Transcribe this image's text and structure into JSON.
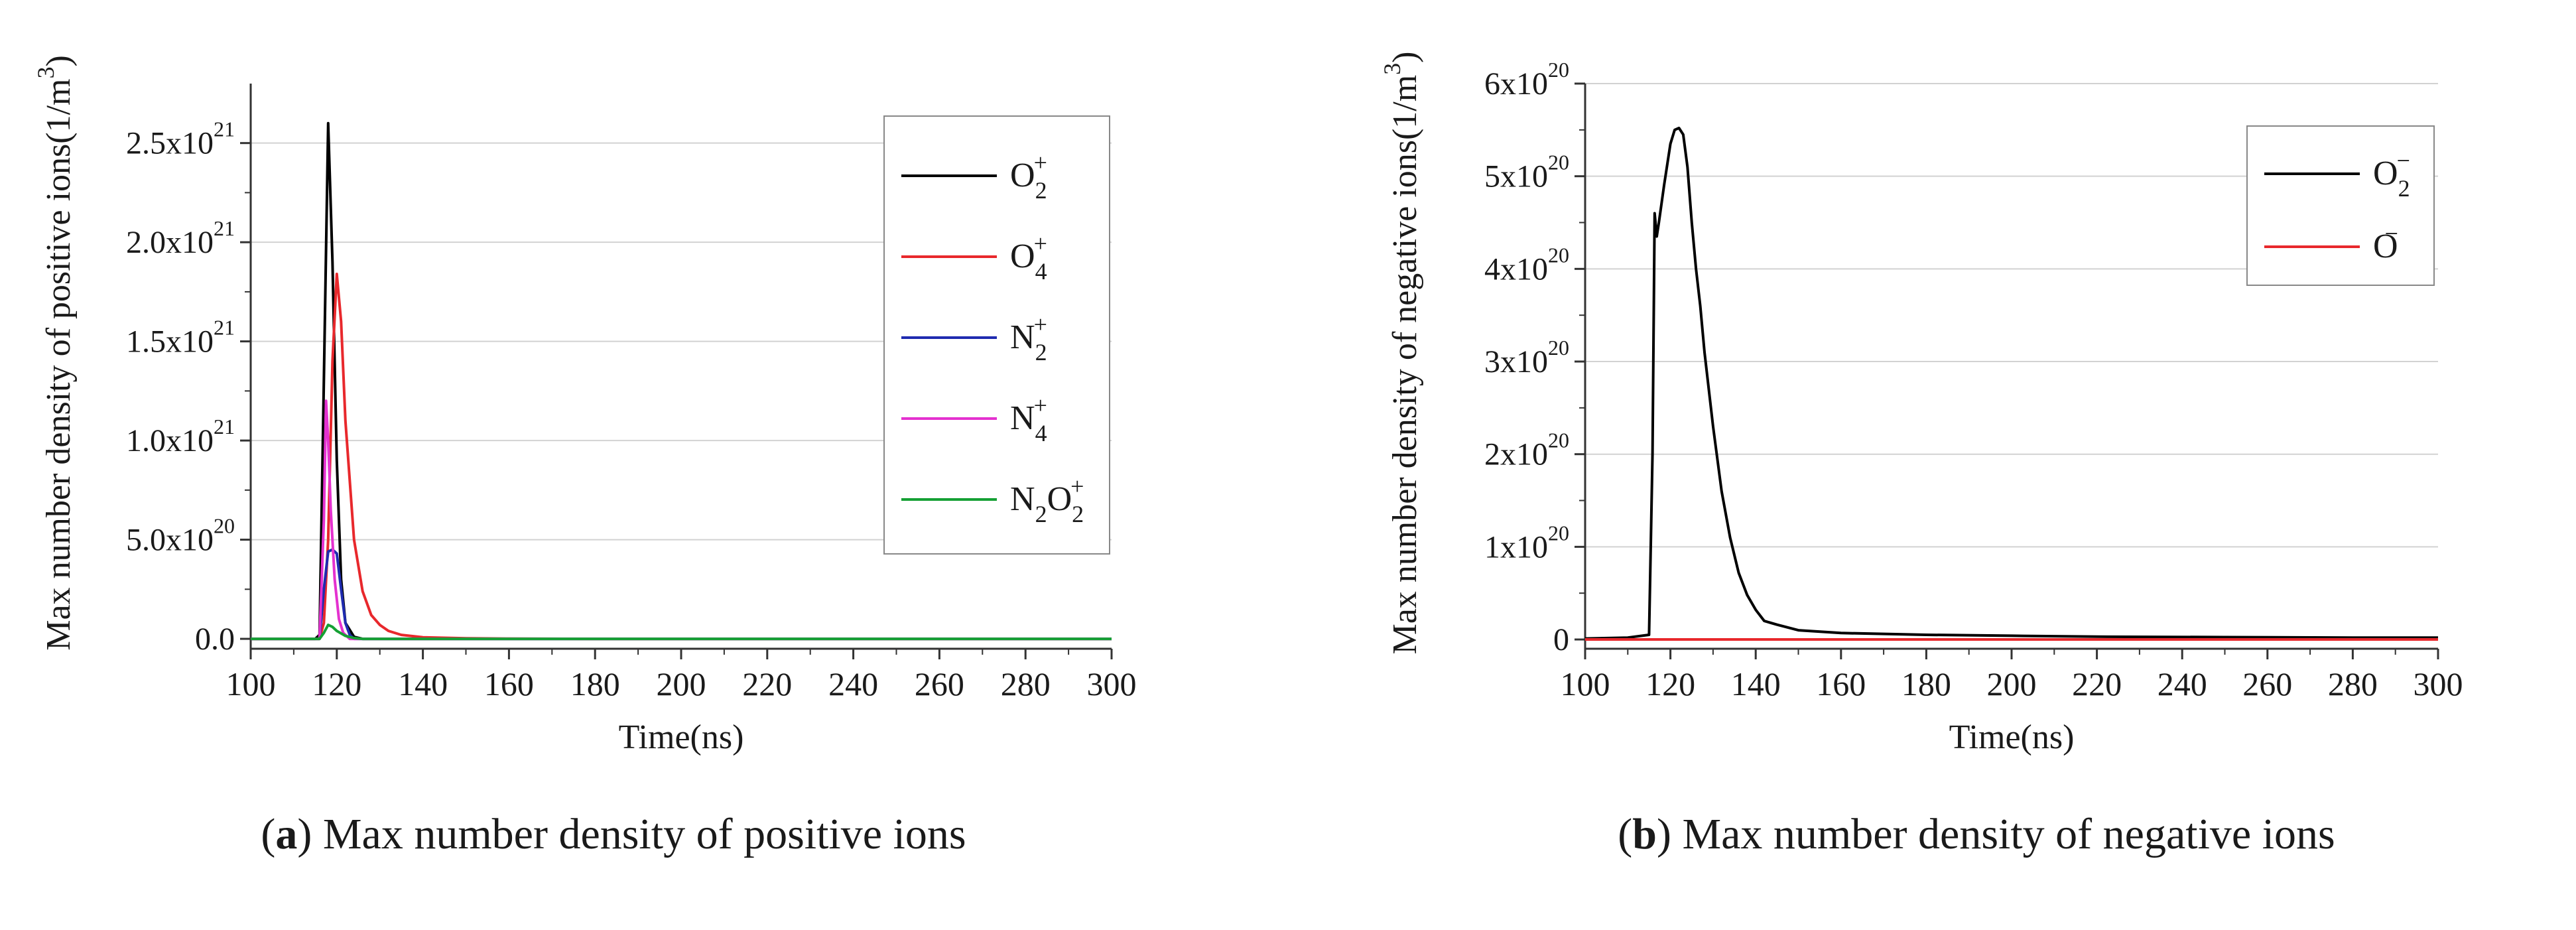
{
  "chart_data": [
    {
      "type": "line",
      "panel_label": "a",
      "caption": "Max number density of positive ions",
      "xlabel": "Time(ns)",
      "ylabel": "Max number density of positive ions(1/m³)",
      "xlim": [
        100,
        300
      ],
      "ylim": [
        -5e+19,
        2.8e+21
      ],
      "grid": true,
      "legend_position": "top-right",
      "x_ticks": [
        100,
        120,
        140,
        160,
        180,
        200,
        220,
        240,
        260,
        280,
        300
      ],
      "x_tick_labels": [
        "100",
        "120",
        "140",
        "160",
        "180",
        "200",
        "220",
        "240",
        "260",
        "280",
        "300"
      ],
      "y_ticks": [
        {
          "value": 0,
          "mantissa": "0.0",
          "exp": ""
        },
        {
          "value": 5e+20,
          "mantissa": "5.0x10",
          "exp": "20"
        },
        {
          "value": 1e+21,
          "mantissa": "1.0x10",
          "exp": "21"
        },
        {
          "value": 1.5e+21,
          "mantissa": "1.5x10",
          "exp": "21"
        },
        {
          "value": 2e+21,
          "mantissa": "2.0x10",
          "exp": "21"
        },
        {
          "value": 2.5e+21,
          "mantissa": "2.5x10",
          "exp": "21"
        }
      ],
      "series": [
        {
          "name": "O2+",
          "label_parts": [
            {
              "t": "O"
            },
            {
              "t": "2",
              "sub": true
            },
            {
              "t": "+",
              "sup": true
            }
          ],
          "color": "#000000",
          "x": [
            100,
            115,
            116,
            117,
            118,
            119,
            120,
            121,
            122,
            124,
            126,
            300
          ],
          "y": [
            0,
            0,
            2e+19,
            1.3e+21,
            2.6e+21,
            1.9e+21,
            9e+20,
            3e+20,
            8e+19,
            1e+19,
            0,
            0
          ]
        },
        {
          "name": "O4+",
          "label_parts": [
            {
              "t": "O"
            },
            {
              "t": "4",
              "sub": true
            },
            {
              "t": "+",
              "sup": true
            }
          ],
          "color": "#e8282c",
          "x": [
            100,
            116,
            117,
            118,
            119,
            120,
            121,
            122,
            124,
            126,
            128,
            130,
            132,
            135,
            140,
            150,
            160,
            180,
            300
          ],
          "y": [
            0,
            0,
            8e+19,
            5e+20,
            1.4e+21,
            1.84e+21,
            1.6e+21,
            1.1e+21,
            5e+20,
            2.4e+20,
            1.2e+20,
            7e+19,
            4e+19,
            2e+19,
            8e+18,
            3e+18,
            1e+18,
            0,
            0
          ]
        },
        {
          "name": "N2+",
          "label_parts": [
            {
              "t": "N"
            },
            {
              "t": "2",
              "sub": true
            },
            {
              "t": "+",
              "sup": true
            }
          ],
          "color": "#1f2bb0",
          "x": [
            100,
            116,
            117,
            118,
            119,
            120,
            121,
            122,
            123,
            124,
            300
          ],
          "y": [
            0,
            0,
            2.5e+20,
            4.4e+20,
            4.5e+20,
            4.3e+20,
            2.5e+20,
            8e+19,
            2e+19,
            0,
            0
          ]
        },
        {
          "name": "N4+",
          "label_parts": [
            {
              "t": "N"
            },
            {
              "t": "4",
              "sub": true
            },
            {
              "t": "+",
              "sup": true
            }
          ],
          "color": "#e431cf",
          "x": [
            100,
            116,
            117,
            117.5,
            118,
            118.6,
            119.5,
            120.5,
            121.5,
            123,
            300
          ],
          "y": [
            0,
            0,
            6e+20,
            1.2e+21,
            1e+21,
            6.5e+20,
            3e+20,
            1e+20,
            3e+19,
            0,
            0
          ]
        },
        {
          "name": "N2O2+",
          "label_parts": [
            {
              "t": "N"
            },
            {
              "t": "2",
              "sub": true
            },
            {
              "t": "O"
            },
            {
              "t": "2",
              "sub": true
            },
            {
              "t": "+",
              "sup": true
            }
          ],
          "color": "#15a034",
          "x": [
            100,
            116,
            117,
            118,
            119,
            120,
            122,
            124,
            126,
            300
          ],
          "y": [
            0,
            0,
            3e+19,
            7e+19,
            6e+19,
            4e+19,
            1.5e+19,
            4e+18,
            0,
            0
          ]
        }
      ]
    },
    {
      "type": "line",
      "panel_label": "b",
      "caption": "Max number density of negative ions",
      "xlabel": "Time(ns)",
      "ylabel": "Max number density of negative ions(1/m³)",
      "xlim": [
        100,
        300
      ],
      "ylim": [
        -1e+19,
        6e+20
      ],
      "grid": true,
      "legend_position": "top-right",
      "x_ticks": [
        100,
        120,
        140,
        160,
        180,
        200,
        220,
        240,
        260,
        280,
        300
      ],
      "x_tick_labels": [
        "100",
        "120",
        "140",
        "160",
        "180",
        "200",
        "220",
        "240",
        "260",
        "280",
        "300"
      ],
      "y_ticks": [
        {
          "value": 0,
          "mantissa": "0",
          "exp": ""
        },
        {
          "value": 1e+20,
          "mantissa": "1x10",
          "exp": "20"
        },
        {
          "value": 2e+20,
          "mantissa": "2x10",
          "exp": "20"
        },
        {
          "value": 3e+20,
          "mantissa": "3x10",
          "exp": "20"
        },
        {
          "value": 4e+20,
          "mantissa": "4x10",
          "exp": "20"
        },
        {
          "value": 5e+20,
          "mantissa": "5x10",
          "exp": "20"
        },
        {
          "value": 6e+20,
          "mantissa": "6x10",
          "exp": "20"
        }
      ],
      "series": [
        {
          "name": "O2−",
          "label_parts": [
            {
              "t": "O"
            },
            {
              "t": "2",
              "sub": true
            },
            {
              "t": "−",
              "sup": true
            }
          ],
          "color": "#000000",
          "x": [
            100,
            110,
            115,
            115.8,
            116.3,
            116.8,
            117.3,
            118.5,
            120,
            121,
            122,
            123,
            124,
            125,
            126,
            127,
            128,
            130,
            132,
            134,
            136,
            138,
            140,
            142,
            145,
            150,
            160,
            180,
            200,
            220,
            250,
            280,
            300
          ],
          "y": [
            1e+18,
            2e+18,
            5e+18,
            2e+20,
            4.6e+20,
            4.35e+20,
            4.5e+20,
            4.9e+20,
            5.35e+20,
            5.5e+20,
            5.52e+20,
            5.45e+20,
            5.1e+20,
            4.5e+20,
            4e+20,
            3.6e+20,
            3.1e+20,
            2.3e+20,
            1.6e+20,
            1.1e+20,
            7.2e+19,
            4.8e+19,
            3.2e+19,
            2e+19,
            1.6e+19,
            1e+19,
            7e+18,
            5e+18,
            4e+18,
            3e+18,
            2.5e+18,
            2e+18,
            2e+18
          ]
        },
        {
          "name": "O−",
          "label_parts": [
            {
              "t": "O"
            },
            {
              "t": "−",
              "sup": true
            }
          ],
          "color": "#e8282c",
          "x": [
            100,
            300
          ],
          "y": [
            0,
            0
          ]
        }
      ]
    }
  ]
}
